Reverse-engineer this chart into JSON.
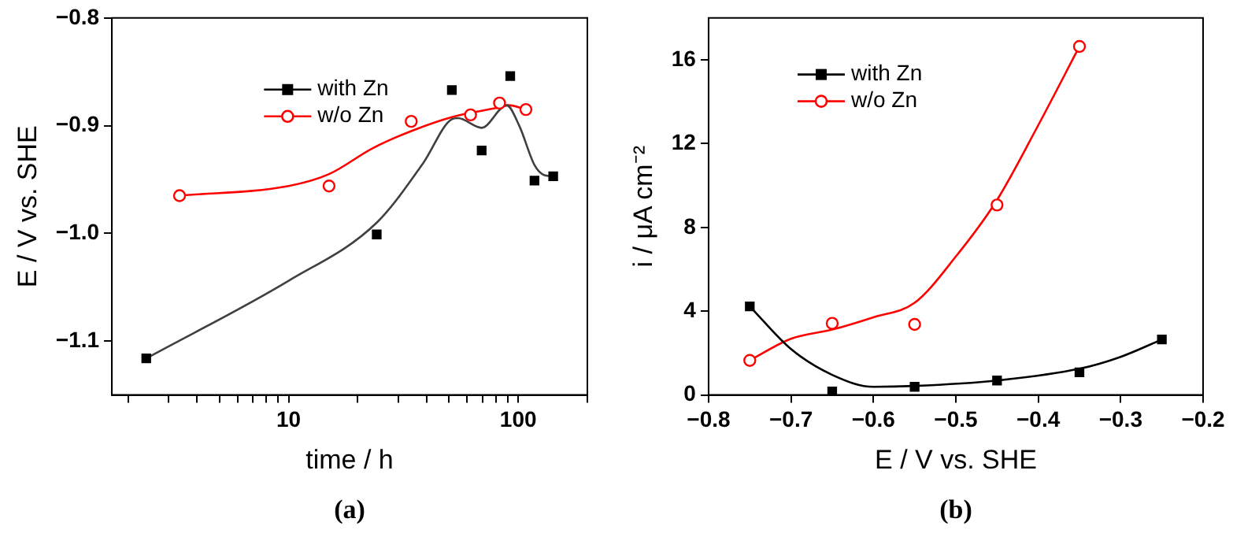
{
  "chart_data": [
    {
      "type": "scatter",
      "xlabel": "time / h",
      "ylabel": "E / V vs. SHE",
      "log": "x",
      "xlim": [
        1.7,
        200
      ],
      "xticks": [
        {
          "value": 2,
          "label": null
        },
        {
          "value": 3,
          "label": null
        },
        {
          "value": 4,
          "label": null
        },
        {
          "value": 5,
          "label": null
        },
        {
          "value": 6,
          "label": null
        },
        {
          "value": 7,
          "label": null
        },
        {
          "value": 8,
          "label": null
        },
        {
          "value": 9,
          "label": null
        },
        10,
        {
          "value": 20,
          "label": null
        },
        {
          "value": 30,
          "label": null
        },
        {
          "value": 40,
          "label": null
        },
        {
          "value": 50,
          "label": null
        },
        {
          "value": 60,
          "label": null
        },
        {
          "value": 70,
          "label": null
        },
        {
          "value": 80,
          "label": null
        },
        {
          "value": 90,
          "label": null
        },
        100,
        {
          "value": 200,
          "label": null
        }
      ],
      "ylim": [
        -1.15,
        -0.8
      ],
      "yticks": [
        {
          "value": -0.8,
          "label": "−0.8"
        },
        {
          "value": -0.9,
          "label": "−0.9"
        },
        {
          "value": -1.0,
          "label": "−1.0"
        },
        {
          "value": -1.1,
          "label": "−1.1"
        }
      ],
      "grid": false,
      "legend": "top",
      "annotations": [
        "(a)"
      ],
      "series": [
        {
          "name": "with Zn",
          "color": "#000000",
          "marker": "square",
          "x": [
            2.4,
            24.2,
            51.4,
            69.3,
            92.3,
            117.7,
            142
          ],
          "values": [
            -1.116,
            -1.001,
            -0.867,
            -0.923,
            -0.854,
            -0.951,
            -0.947
          ]
        },
        {
          "name": "w/o Zn",
          "color": "#ff0000",
          "marker": "circle",
          "x": [
            3.35,
            15.0,
            34.2,
            62,
            82.9,
            108
          ],
          "values": [
            -0.965,
            -0.956,
            -0.896,
            -0.89,
            -0.879,
            -0.885
          ]
        },
        {
          "type": "line",
          "color": "#404040",
          "x": [
            2.4,
            10,
            24.2,
            38.5,
            51.4,
            54.6,
            69.3,
            89,
            101,
            118,
            130,
            142
          ],
          "values": [
            -1.116,
            -1.044,
            -0.99,
            -0.935,
            -0.894,
            -0.893,
            -0.902,
            -0.881,
            -0.9,
            -0.937,
            -0.946,
            -0.947
          ]
        },
        {
          "type": "line",
          "color": "#ff0000",
          "x": [
            3.35,
            10,
            15,
            23.2,
            34.2,
            51.4,
            82.9,
            90.7,
            108
          ],
          "values": [
            -0.965,
            -0.956,
            -0.945,
            -0.921,
            -0.905,
            -0.892,
            -0.883,
            -0.881,
            -0.885
          ]
        }
      ]
    },
    {
      "type": "scatter",
      "xlabel": "E / V vs. SHE",
      "ylabel": "i / μA cm⁻²",
      "xlim": [
        -0.8,
        -0.2
      ],
      "xticks": [
        {
          "value": -0.8,
          "label": "−0.8"
        },
        {
          "value": -0.7,
          "label": "−0.7"
        },
        {
          "value": -0.6,
          "label": "−0.6"
        },
        {
          "value": -0.5,
          "label": "−0.5"
        },
        {
          "value": -0.4,
          "label": "−0.4"
        },
        {
          "value": -0.3,
          "label": "−0.3"
        },
        {
          "value": -0.2,
          "label": "−0.2"
        }
      ],
      "ylim": [
        0,
        18
      ],
      "yticks": [
        0,
        4,
        8,
        12,
        16
      ],
      "grid": false,
      "legend": "top left",
      "annotations": [
        "(b)"
      ],
      "series": [
        {
          "name": "with Zn",
          "color": "#000000",
          "marker": "square",
          "x": [
            -0.75,
            -0.65,
            -0.55,
            -0.45,
            -0.35,
            -0.25
          ],
          "values": [
            4.23,
            0.17,
            0.39,
            0.69,
            1.08,
            2.65
          ]
        },
        {
          "name": "w/o Zn",
          "color": "#ff0000",
          "marker": "circle",
          "x": [
            -0.75,
            -0.65,
            -0.55,
            -0.45,
            -0.35
          ],
          "values": [
            1.65,
            3.42,
            3.37,
            9.07,
            16.64
          ]
        },
        {
          "type": "line",
          "color": "#000000",
          "x": [
            -0.75,
            -0.7,
            -0.65,
            -0.6,
            -0.55,
            -0.45,
            -0.35,
            -0.3,
            -0.25
          ],
          "values": [
            4.23,
            2.19,
            0.96,
            0.39,
            0.43,
            0.69,
            1.25,
            1.82,
            2.65
          ]
        },
        {
          "type": "line",
          "color": "#ff0000",
          "x": [
            -0.75,
            -0.7,
            -0.65,
            -0.6,
            -0.55,
            -0.5,
            -0.45,
            -0.4,
            -0.35
          ],
          "values": [
            1.65,
            2.68,
            3.12,
            3.71,
            4.4,
            6.61,
            9.31,
            12.88,
            16.64
          ]
        }
      ]
    }
  ]
}
